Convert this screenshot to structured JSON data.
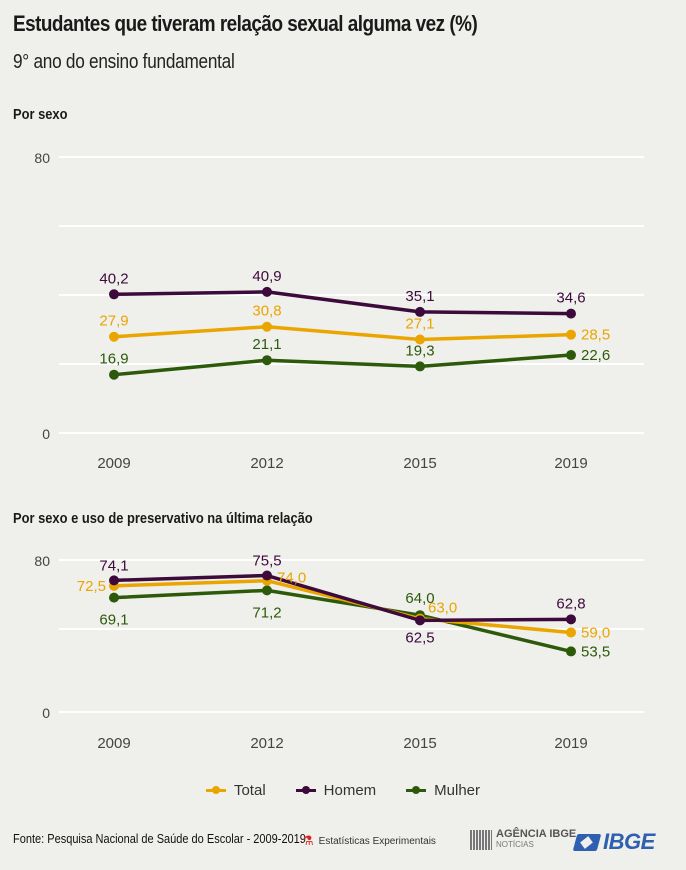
{
  "header": {
    "title": "Estudantes que tiveram relação sexual alguma vez (%)",
    "subtitle": "9° ano do ensino fundamental"
  },
  "colors": {
    "Total": "#eaa500",
    "Homem": "#3d0a3c",
    "Mulher": "#2c5a0a",
    "grid": "#ffffff",
    "axis_text": "#444444"
  },
  "chart_data": [
    {
      "type": "line",
      "title": "Por sexo",
      "categories": [
        "2009",
        "2012",
        "2015",
        "2019"
      ],
      "yticks": [
        "80",
        "0"
      ],
      "ylim": [
        0,
        80
      ],
      "grid": true,
      "series": [
        {
          "name": "Homem",
          "values": [
            40.2,
            40.9,
            35.1,
            34.6
          ],
          "labels": [
            "40,2",
            "40,9",
            "35,1",
            "34,6"
          ]
        },
        {
          "name": "Total",
          "values": [
            27.9,
            30.8,
            27.1,
            28.5
          ],
          "labels": [
            "27,9",
            "30,8",
            "27,1",
            "28,5"
          ]
        },
        {
          "name": "Mulher",
          "values": [
            16.9,
            21.1,
            19.3,
            22.6
          ],
          "labels": [
            "16,9",
            "21,1",
            "19,3",
            "22,6"
          ]
        }
      ]
    },
    {
      "type": "line",
      "title": "Por sexo e uso de preservativo na última relação",
      "categories": [
        "2009",
        "2012",
        "2015",
        "2019"
      ],
      "yticks": [
        "80",
        "0"
      ],
      "ylim": [
        0,
        80
      ],
      "axis_break": true,
      "grid": true,
      "series": [
        {
          "name": "Homem",
          "values": [
            74.1,
            75.5,
            62.5,
            62.8
          ],
          "labels": [
            "74,1",
            "75,5",
            "62,5",
            "62,8"
          ]
        },
        {
          "name": "Total",
          "values": [
            72.5,
            74.0,
            63.0,
            59.0
          ],
          "labels": [
            "72,5",
            "74,0",
            "63,0",
            "59,0"
          ]
        },
        {
          "name": "Mulher",
          "values": [
            69.1,
            71.2,
            64.0,
            53.5
          ],
          "labels": [
            "69,1",
            "71,2",
            "64,0",
            "53,5"
          ]
        }
      ]
    }
  ],
  "legend": [
    {
      "name": "Total"
    },
    {
      "name": "Homem"
    },
    {
      "name": "Mulher"
    }
  ],
  "footer": {
    "source": "Fonte: Pesquisa Nacional de Saúde do Escolar - 2009-2019",
    "experimental": "Estatísticas Experimentais",
    "agencia": "AGÊNCIA IBGE",
    "agencia_sub": "NOTÍCIAS",
    "ibge": "IBGE"
  }
}
